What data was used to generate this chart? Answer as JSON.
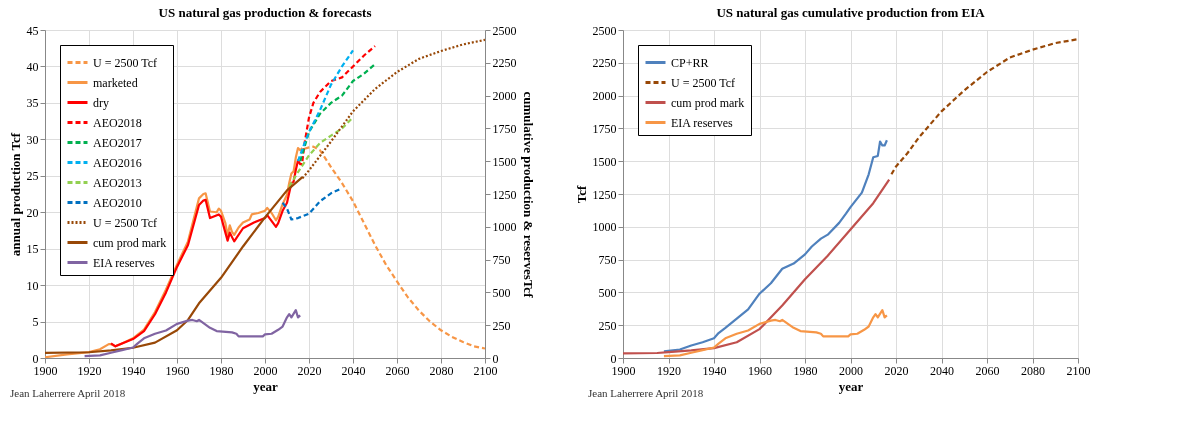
{
  "chart_data": [
    {
      "type": "line",
      "title": "US natural gas production & forecasts",
      "xlabel": "year",
      "ylabel": "annual production Tcf",
      "y2label": "cumulative production  & reservesTcf",
      "annotations": [
        "Jean Laherrere April 2018"
      ],
      "xlim": [
        1900,
        2100
      ],
      "xticks": [
        1900,
        1920,
        1940,
        1960,
        1980,
        2000,
        2020,
        2040,
        2060,
        2080,
        2100
      ],
      "ylim": [
        0,
        45
      ],
      "yticks": [
        0,
        5,
        10,
        15,
        20,
        25,
        30,
        35,
        40,
        45
      ],
      "y2lim": [
        0,
        2500
      ],
      "y2ticks": [
        0,
        250,
        500,
        750,
        1000,
        1250,
        1500,
        1750,
        2000,
        2250,
        2500
      ],
      "grid": true,
      "legend": "top left",
      "series": [
        {
          "name": "U = 2500 Tcf",
          "color": "#f79646",
          "line_style": "dashed",
          "x": [
            2018,
            2020,
            2022,
            2025,
            2030,
            2035,
            2040,
            2045,
            2050,
            2055,
            2060,
            2065,
            2070,
            2075,
            2080,
            2085,
            2090,
            2095,
            2100
          ],
          "values": [
            28.7,
            28.9,
            29,
            28.5,
            26.2,
            24,
            21.5,
            18.5,
            15.5,
            12.8,
            10.5,
            8.3,
            6.5,
            5,
            3.8,
            2.9,
            2.2,
            1.6,
            1.3
          ]
        },
        {
          "name": "marketed",
          "color": "#f79646",
          "line_style": "solid",
          "x": [
            1900,
            1910,
            1920,
            1925,
            1929,
            1930,
            1932,
            1935,
            1940,
            1945,
            1950,
            1955,
            1960,
            1965,
            1970,
            1972,
            1973,
            1975,
            1978,
            1979,
            1980,
            1982,
            1983,
            1984,
            1985,
            1986,
            1988,
            1990,
            1993,
            1994,
            1997,
            2000,
            2001,
            2003,
            2005,
            2006,
            2008,
            2010,
            2011,
            2012,
            2013,
            2014,
            2015,
            2016,
            2017
          ],
          "values": [
            0.1,
            0.5,
            0.8,
            1.2,
            1.9,
            1.9,
            1.6,
            2,
            2.7,
            3.9,
            6.3,
            9.4,
            12.8,
            16,
            21.9,
            22.5,
            22.6,
            20.1,
            20,
            20.5,
            20.2,
            18.5,
            16.8,
            18.2,
            17.3,
            16.9,
            17.9,
            18.6,
            19,
            19.7,
            19.9,
            20.2,
            20.6,
            19.9,
            18.9,
            19.4,
            21.1,
            22.4,
            24,
            25.3,
            25.6,
            27.5,
            28.8,
            28.5,
            28.8
          ]
        },
        {
          "name": "dry",
          "color": "#ff0000",
          "line_style": "solid",
          "x": [
            1930,
            1932,
            1935,
            1940,
            1945,
            1950,
            1955,
            1960,
            1965,
            1970,
            1972,
            1973,
            1975,
            1979,
            1980,
            1983,
            1984,
            1986,
            1990,
            1995,
            2000,
            2001,
            2005,
            2006,
            2008,
            2010,
            2012,
            2013,
            2014,
            2015,
            2016,
            2017
          ],
          "values": [
            2,
            1.6,
            2,
            2.6,
            3.7,
            6,
            9,
            12.5,
            15.5,
            21,
            21.6,
            21.7,
            19.2,
            19.7,
            19.4,
            16.1,
            17.2,
            16,
            17.8,
            18.6,
            19.2,
            19.6,
            18,
            18.5,
            20.2,
            21.3,
            24,
            24.2,
            25.8,
            27.1,
            26.6,
            26.6
          ]
        },
        {
          "name": "AEO2018",
          "color": "#ff0000",
          "line_style": "dashed",
          "x": [
            2017,
            2018,
            2020,
            2022,
            2025,
            2030,
            2035,
            2040,
            2045,
            2050
          ],
          "values": [
            27,
            29.5,
            33,
            35,
            36.5,
            38,
            38.5,
            40,
            41.5,
            42.8
          ]
        },
        {
          "name": "AEO2017",
          "color": "#00b050",
          "line_style": "dashed",
          "x": [
            2016,
            2020,
            2025,
            2030,
            2035,
            2040,
            2045,
            2050
          ],
          "values": [
            27,
            31,
            33.5,
            35,
            36,
            38,
            39,
            40.3
          ]
        },
        {
          "name": "AEO2016",
          "color": "#00b0f0",
          "line_style": "dashed",
          "x": [
            2015,
            2018,
            2020,
            2025,
            2030,
            2035,
            2040
          ],
          "values": [
            27,
            29.5,
            31,
            34,
            37.5,
            40,
            42.2
          ]
        },
        {
          "name": "AEO2013",
          "color": "#92d050",
          "line_style": "dashed",
          "x": [
            2011,
            2015,
            2020,
            2025,
            2030,
            2035,
            2040
          ],
          "values": [
            23.5,
            25.5,
            27.8,
            29.5,
            30.5,
            31.5,
            33
          ]
        },
        {
          "name": "AEO2010",
          "color": "#0070c0",
          "line_style": "dashed",
          "x": [
            2008,
            2010,
            2012,
            2015,
            2020,
            2025,
            2030,
            2035
          ],
          "values": [
            21.3,
            20.5,
            19,
            19.2,
            19.8,
            21.5,
            22.6,
            23.3
          ]
        },
        {
          "name": "U = 2500 Tcf",
          "color": "#984807",
          "line_style": "dotted",
          "axis": "y2",
          "x": [
            2017,
            2020,
            2030,
            2040,
            2050,
            2060,
            2070,
            2080,
            2090,
            2100
          ],
          "values": [
            1370,
            1430,
            1650,
            1880,
            2050,
            2180,
            2280,
            2340,
            2390,
            2425
          ]
        },
        {
          "name": "cum prod mark",
          "color": "#984807",
          "line_style": "solid",
          "axis": "y2",
          "x": [
            1900,
            1920,
            1930,
            1940,
            1950,
            1960,
            1965,
            1970,
            1980,
            1990,
            2000,
            2010,
            2017
          ],
          "values": [
            39,
            44,
            58,
            78,
            117,
            211,
            290,
            417,
            611,
            850,
            1072,
            1278,
            1378
          ]
        },
        {
          "name": "EIA reserves",
          "color": "#8064a2",
          "line_style": "solid",
          "axis": "y2",
          "x": [
            1918,
            1925,
            1930,
            1935,
            1940,
            1942,
            1945,
            1950,
            1955,
            1960,
            1965,
            1967,
            1969,
            1970,
            1975,
            1978,
            1985,
            1987,
            1988,
            1990,
            1999,
            2000,
            2003,
            2006,
            2008,
            2010,
            2011,
            2012,
            2014,
            2015,
            2016
          ],
          "values": [
            15,
            20,
            40,
            60,
            80,
            110,
            150,
            185,
            210,
            260,
            285,
            290,
            280,
            290,
            230,
            205,
            195,
            185,
            165,
            165,
            165,
            180,
            185,
            215,
            240,
            310,
            335,
            310,
            365,
            310,
            325
          ]
        }
      ]
    },
    {
      "type": "line",
      "title": "US natural gas cumulative production from EIA",
      "xlabel": "year",
      "ylabel": "Tcf",
      "annotations": [
        "Jean Laherrere April 2018"
      ],
      "xlim": [
        1900,
        2100
      ],
      "xticks": [
        1900,
        1920,
        1940,
        1960,
        1980,
        2000,
        2020,
        2040,
        2060,
        2080,
        2100
      ],
      "ylim": [
        0,
        2500
      ],
      "yticks": [
        0,
        250,
        500,
        750,
        1000,
        1250,
        1500,
        1750,
        2000,
        2250,
        2500
      ],
      "grid": true,
      "legend": "top left",
      "series": [
        {
          "name": "CP+RR",
          "color": "#4f81bd",
          "line_style": "solid",
          "x": [
            1918,
            1925,
            1930,
            1935,
            1940,
            1942,
            1945,
            1950,
            1955,
            1960,
            1965,
            1970,
            1975,
            1980,
            1983,
            1987,
            1990,
            1995,
            1998,
            2000,
            2005,
            2008,
            2010,
            2012,
            2013,
            2014,
            2015,
            2016
          ],
          "values": [
            50,
            65,
            95,
            120,
            150,
            190,
            230,
            300,
            370,
            490,
            570,
            680,
            720,
            790,
            850,
            910,
            940,
            1030,
            1100,
            1150,
            1260,
            1400,
            1530,
            1540,
            1650,
            1620,
            1620,
            1660
          ]
        },
        {
          "name": "U = 2500 Tcf",
          "color": "#984807",
          "line_style": "dashed",
          "x": [
            2018,
            2020,
            2025,
            2030,
            2040,
            2050,
            2060,
            2070,
            2080,
            2090,
            2100
          ],
          "values": [
            1400,
            1460,
            1560,
            1680,
            1880,
            2040,
            2180,
            2290,
            2350,
            2400,
            2430
          ]
        },
        {
          "name": "cum prod mark",
          "color": "#c0504d",
          "line_style": "solid",
          "x": [
            1900,
            1915,
            1920,
            1930,
            1940,
            1950,
            1960,
            1970,
            1980,
            1990,
            2000,
            2010,
            2017
          ],
          "values": [
            35,
            38,
            45,
            58,
            75,
            120,
            220,
            400,
            600,
            780,
            980,
            1180,
            1360
          ]
        },
        {
          "name": "EIA reserves",
          "color": "#f79646",
          "line_style": "solid",
          "x": [
            1918,
            1925,
            1930,
            1935,
            1940,
            1942,
            1945,
            1950,
            1955,
            1960,
            1965,
            1967,
            1969,
            1970,
            1975,
            1978,
            1985,
            1987,
            1988,
            1990,
            1999,
            2000,
            2003,
            2006,
            2008,
            2010,
            2011,
            2012,
            2014,
            2015,
            2016
          ],
          "values": [
            15,
            20,
            40,
            60,
            80,
            110,
            150,
            185,
            210,
            260,
            285,
            290,
            280,
            290,
            230,
            205,
            195,
            185,
            165,
            165,
            165,
            180,
            185,
            215,
            240,
            310,
            335,
            310,
            365,
            310,
            325
          ]
        }
      ]
    }
  ]
}
